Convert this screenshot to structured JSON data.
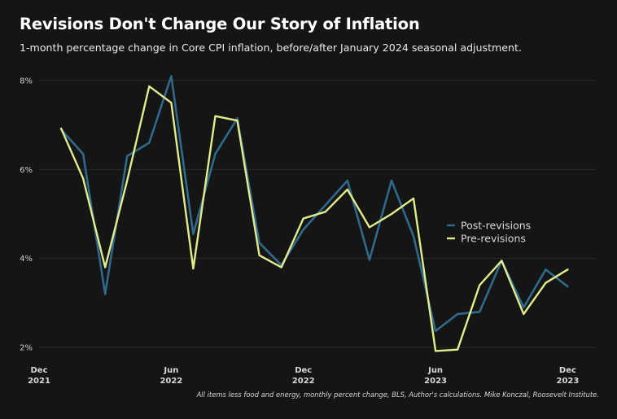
{
  "title": "Revisions Don't Change Our Story of Inflation",
  "subtitle": "1-month percentage change in Core CPI inflation, before/after January 2024 seasonal adjustment.",
  "caption": "All items less food and energy, monthly percent change, BLS, Author's calculations. Mike Konczal, Roosevelt Institute.",
  "chart_data": {
    "type": "line",
    "title": "Revisions Don't Change Our Story of Inflation",
    "xlabel": "",
    "ylabel": "",
    "ylim": [
      1.8,
      8.3
    ],
    "grid": true,
    "legend": "center-right",
    "ytick_values": [
      2,
      4,
      6,
      8
    ],
    "ytick_labels": [
      "2%",
      "4%",
      "6%",
      "8%"
    ],
    "xticks": [
      {
        "index": 0,
        "line1": "Dec",
        "line2": "2021"
      },
      {
        "index": 6,
        "line1": "Jun",
        "line2": "2022"
      },
      {
        "index": 12,
        "line1": "Dec",
        "line2": "2022"
      },
      {
        "index": 18,
        "line1": "Jun",
        "line2": "2023"
      },
      {
        "index": 24,
        "line1": "Dec",
        "line2": "2023"
      }
    ],
    "x": [
      "Jan 2022",
      "Feb 2022",
      "Mar 2022",
      "Apr 2022",
      "May 2022",
      "Jun 2022",
      "Jul 2022",
      "Aug 2022",
      "Sep 2022",
      "Oct 2022",
      "Nov 2022",
      "Dec 2022",
      "Jan 2023",
      "Feb 2023",
      "Mar 2023",
      "Apr 2023",
      "May 2023",
      "Jun 2023",
      "Jul 2023",
      "Aug 2023",
      "Sep 2023",
      "Oct 2023",
      "Nov 2023",
      "Dec 2023"
    ],
    "x_index": [
      1,
      2,
      3,
      4,
      5,
      6,
      7,
      8,
      9,
      10,
      11,
      12,
      13,
      14,
      15,
      16,
      17,
      18,
      19,
      20,
      21,
      22,
      23,
      24
    ],
    "series": [
      {
        "name": "Post-revisions",
        "color": "#2f6a8e",
        "values": [
          6.9,
          6.35,
          3.2,
          6.3,
          6.6,
          8.1,
          4.55,
          6.35,
          7.15,
          4.35,
          3.85,
          4.65,
          5.2,
          5.75,
          3.97,
          5.75,
          4.5,
          2.37,
          2.75,
          2.8,
          3.95,
          2.9,
          3.75,
          3.37
        ]
      },
      {
        "name": "Pre-revisions",
        "color": "#e3ec8a",
        "values": [
          6.92,
          5.8,
          3.8,
          5.75,
          7.87,
          7.5,
          3.77,
          7.2,
          7.1,
          4.07,
          3.8,
          4.9,
          5.05,
          5.55,
          4.7,
          5.0,
          5.35,
          1.92,
          1.95,
          3.4,
          3.95,
          2.75,
          3.45,
          3.75
        ]
      }
    ]
  }
}
